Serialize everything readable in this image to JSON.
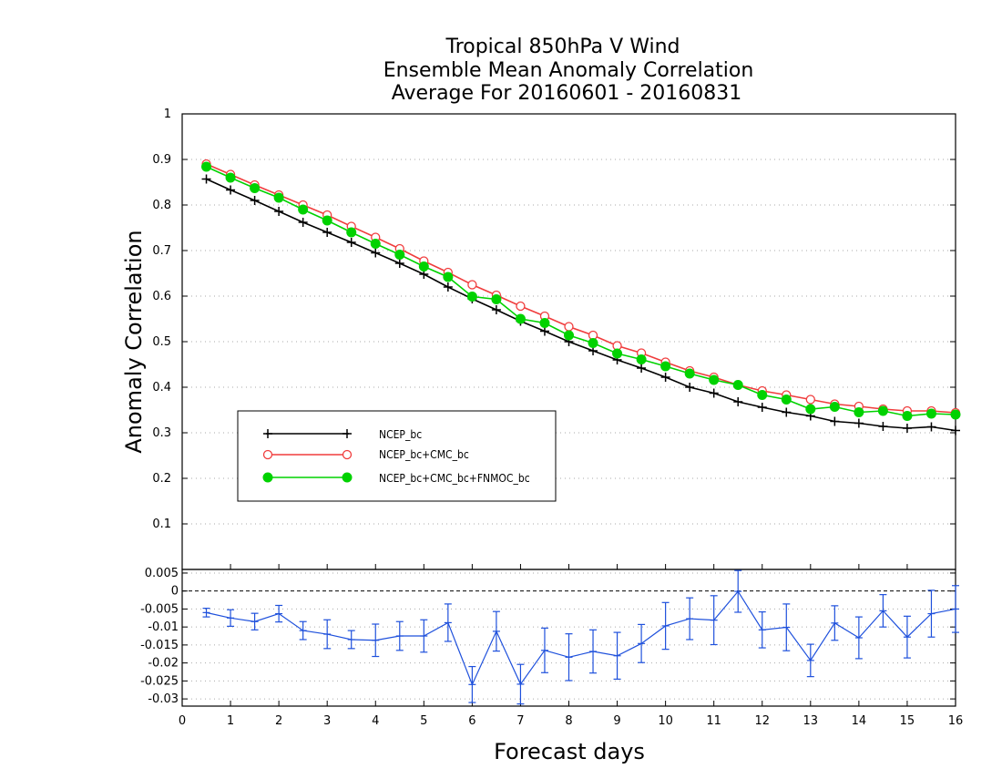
{
  "title_lines": [
    "Tropical 850hPa V Wind",
    "Ensemble Mean Anomaly Correlation",
    "Average For 20160601 - 20160831"
  ],
  "colors": {
    "NCEP_bc": "#000000",
    "NCEP_bc+CMC_bc": "#f03c3c",
    "NCEP_bc+CMC_bc+FNMOC_bc": "#00d200",
    "difference": "#1e50dc"
  },
  "chart_data": [
    {
      "type": "line",
      "title": "Tropical 850hPa V Wind / Ensemble Mean Anomaly Correlation / Average For 20160601 - 20160831",
      "xlabel": "Forecast days",
      "ylabel": "Anomaly Correlation",
      "xlim": [
        0,
        16
      ],
      "ylim": [
        0,
        1
      ],
      "x_ticks": [
        "0",
        "1",
        "2",
        "3",
        "4",
        "5",
        "6",
        "7",
        "8",
        "9",
        "10",
        "11",
        "12",
        "13",
        "14",
        "15",
        "16"
      ],
      "y_ticks": [
        "0.1",
        "0.2",
        "0.3",
        "0.4",
        "0.5",
        "0.6",
        "0.7",
        "0.8",
        "0.9",
        "1"
      ],
      "grid": true,
      "legend_position": "lower-left",
      "x": [
        0.5,
        1,
        1.5,
        2,
        2.5,
        3,
        3.5,
        4,
        4.5,
        5,
        5.5,
        6,
        6.5,
        7,
        7.5,
        8,
        8.5,
        9,
        9.5,
        10,
        10.5,
        11,
        11.5,
        12,
        12.5,
        13,
        13.5,
        14,
        14.5,
        15,
        15.5,
        16
      ],
      "series": [
        {
          "name": "NCEP_bc",
          "marker": "plus",
          "values": [
            0.857,
            0.833,
            0.81,
            0.786,
            0.762,
            0.74,
            0.718,
            0.695,
            0.672,
            0.648,
            0.62,
            0.594,
            0.57,
            0.545,
            0.523,
            0.5,
            0.48,
            0.46,
            0.442,
            0.422,
            0.4,
            0.387,
            0.368,
            0.356,
            0.345,
            0.337,
            0.325,
            0.321,
            0.314,
            0.31,
            0.313,
            0.305
          ]
        },
        {
          "name": "NCEP_bc+CMC_bc",
          "marker": "open-circle",
          "values": [
            0.89,
            0.867,
            0.844,
            0.822,
            0.8,
            0.778,
            0.753,
            0.729,
            0.704,
            0.677,
            0.652,
            0.625,
            0.602,
            0.578,
            0.556,
            0.533,
            0.514,
            0.491,
            0.475,
            0.455,
            0.436,
            0.422,
            0.405,
            0.392,
            0.383,
            0.373,
            0.363,
            0.358,
            0.352,
            0.348,
            0.348,
            0.344
          ]
        },
        {
          "name": "NCEP_bc+CMC_bc+FNMOC_bc",
          "marker": "filled-circle",
          "values": [
            0.884,
            0.86,
            0.837,
            0.816,
            0.79,
            0.766,
            0.74,
            0.715,
            0.691,
            0.665,
            0.642,
            0.599,
            0.593,
            0.55,
            0.541,
            0.514,
            0.497,
            0.474,
            0.461,
            0.446,
            0.43,
            0.416,
            0.405,
            0.383,
            0.373,
            0.352,
            0.357,
            0.345,
            0.348,
            0.337,
            0.342,
            0.34
          ]
        }
      ]
    },
    {
      "type": "line",
      "xlabel": "Forecast days",
      "ylim": [
        -0.032,
        0.006
      ],
      "y_ticks": [
        "0.005",
        "0",
        "-0.005",
        "-0.01",
        "-0.015",
        "-0.02",
        "-0.025",
        "-0.03"
      ],
      "grid": true,
      "x": [
        0.5,
        1,
        1.5,
        2,
        2.5,
        3,
        3.5,
        4,
        4.5,
        5,
        5.5,
        6,
        6.5,
        7,
        7.5,
        8,
        8.5,
        9,
        9.5,
        10,
        10.5,
        11,
        11.5,
        12,
        12.5,
        13,
        13.5,
        14,
        14.5,
        15,
        15.5,
        16
      ],
      "series": [
        {
          "marker": "error-bar",
          "values": [
            -0.006,
            -0.0075,
            -0.0085,
            -0.0063,
            -0.011,
            -0.012,
            -0.0135,
            -0.0137,
            -0.0125,
            -0.0125,
            -0.0088,
            -0.026,
            -0.0112,
            -0.0259,
            -0.0165,
            -0.0184,
            -0.0168,
            -0.018,
            -0.0146,
            -0.0097,
            -0.0077,
            -0.0081,
            -0.0001,
            -0.0108,
            -0.0101,
            -0.0193,
            -0.0089,
            -0.013,
            -0.0055,
            -0.0128,
            -0.0063,
            -0.005
          ],
          "error": [
            0.0012,
            0.0023,
            0.0023,
            0.0023,
            0.0025,
            0.004,
            0.0025,
            0.0045,
            0.004,
            0.0045,
            0.0052,
            0.005,
            0.0055,
            0.0055,
            0.0062,
            0.0065,
            0.006,
            0.0065,
            0.0053,
            0.0065,
            0.0058,
            0.0068,
            0.0058,
            0.005,
            0.0065,
            0.0045,
            0.0048,
            0.0058,
            0.0045,
            0.0058,
            0.0065,
            0.0065
          ]
        }
      ]
    }
  ]
}
